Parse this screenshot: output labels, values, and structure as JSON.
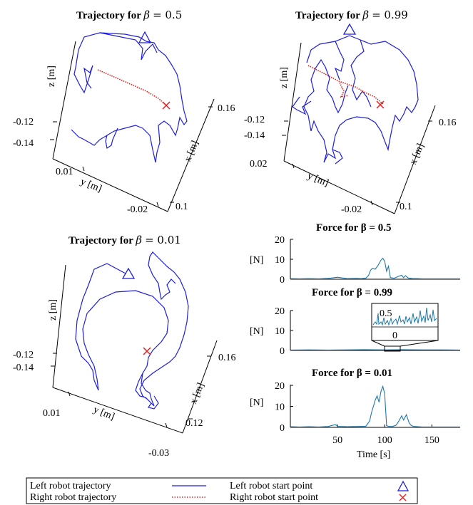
{
  "charts": [
    {
      "id": "traj_05",
      "type": "line3d",
      "title_prefix": "Trajectory for",
      "beta_symbol": "β",
      "beta_value": "= 0.5",
      "zlabel": "z [m]",
      "ylabel": "y [m]",
      "xlabel": "x [m]",
      "z_ticks": [
        "-0.12",
        "-0.14"
      ],
      "y_ticks": [
        "0.01",
        "-0.02"
      ],
      "x_ticks": [
        "0.16",
        "0.1"
      ]
    },
    {
      "id": "traj_099",
      "type": "line3d",
      "title_prefix": "Trajectory for",
      "beta_symbol": "β",
      "beta_value": "= 0.99",
      "zlabel": "z [m]",
      "ylabel": "y [m]",
      "xlabel": "x [m]",
      "z_ticks": [
        "-0.12",
        "-0.14"
      ],
      "y_ticks": [
        "0.02",
        "-0.02"
      ],
      "x_ticks": [
        "0.16",
        "0.1"
      ]
    },
    {
      "id": "traj_001",
      "type": "line3d",
      "title_prefix": "Trajectory for",
      "beta_symbol": "β",
      "beta_value": "= 0.01",
      "zlabel": "z [m]",
      "ylabel": "y [m]",
      "xlabel": "x [m]",
      "z_ticks": [
        "-0.12",
        "-0.14"
      ],
      "y_ticks": [
        "0.01",
        "-0.03"
      ],
      "x_ticks": [
        "0.16",
        "0.12"
      ]
    }
  ],
  "chart_data": [
    {
      "type": "line",
      "title": "Force for β = 0.5",
      "ylabel": "[N]",
      "xlim": [
        0,
        180
      ],
      "ylim": [
        0,
        20
      ],
      "yticks": [
        0,
        10,
        20
      ],
      "x": [
        0,
        10,
        20,
        30,
        40,
        50,
        60,
        70,
        75,
        80,
        83,
        85,
        87,
        90,
        93,
        96,
        98,
        100,
        102,
        104,
        106,
        110,
        115,
        118,
        120,
        122,
        125,
        128,
        130,
        135,
        140,
        160,
        180
      ],
      "y": [
        0.3,
        0.2,
        0.3,
        0.2,
        0.4,
        1.0,
        0.3,
        0.4,
        0.3,
        0.5,
        2.0,
        4.5,
        5.5,
        5.0,
        7.0,
        9.5,
        10.5,
        9.0,
        4.0,
        6.5,
        0.8,
        0.5,
        1.5,
        2.0,
        0.8,
        1.8,
        0.6,
        0.4,
        0.3,
        0.3,
        0.2,
        0.2,
        0.2
      ]
    },
    {
      "type": "line",
      "title": "Force for β = 0.99",
      "ylabel": "[N]",
      "xlim": [
        0,
        180
      ],
      "ylim": [
        0,
        20
      ],
      "yticks": [
        0,
        10,
        20
      ],
      "inset_ticks": [
        "0.5",
        "0"
      ],
      "x": [
        0,
        20,
        40,
        60,
        80,
        100,
        120,
        140,
        160,
        180
      ],
      "y": [
        0.2,
        0.3,
        0.2,
        0.3,
        0.4,
        0.3,
        0.4,
        0.3,
        0.3,
        0.2
      ]
    },
    {
      "type": "line",
      "title": "Force for β = 0.01",
      "ylabel": "[N]",
      "xlabel": "Time [s]",
      "xlim": [
        0,
        180
      ],
      "ylim": [
        0,
        20
      ],
      "yticks": [
        0,
        10,
        20
      ],
      "xticks": [
        50,
        100,
        150
      ],
      "x": [
        0,
        10,
        20,
        30,
        40,
        45,
        48,
        50,
        60,
        70,
        80,
        84,
        86,
        88,
        90,
        92,
        94,
        96,
        98,
        100,
        102,
        104,
        108,
        112,
        115,
        118,
        120,
        123,
        126,
        128,
        130,
        135,
        140,
        160,
        180
      ],
      "y": [
        0.3,
        0.2,
        0.3,
        0.2,
        0.4,
        1.0,
        1.3,
        0.5,
        0.3,
        0.4,
        0.5,
        3.0,
        7.0,
        10.0,
        13.0,
        15.0,
        12.0,
        17.0,
        19.5,
        16.0,
        0.8,
        0.5,
        0.4,
        1.0,
        3.0,
        5.5,
        3.5,
        6.0,
        2.0,
        1.0,
        0.5,
        0.3,
        0.2,
        0.2,
        0.2
      ]
    }
  ],
  "legend": {
    "left_traj": "Left robot trajectory",
    "right_traj": "Right robot trajectory",
    "left_start": "Left robot start point",
    "right_start": "Right robot start point"
  },
  "colors": {
    "left_robot": "#1f1fd6",
    "right_robot": "#e02020",
    "force": "#1f77a8"
  }
}
